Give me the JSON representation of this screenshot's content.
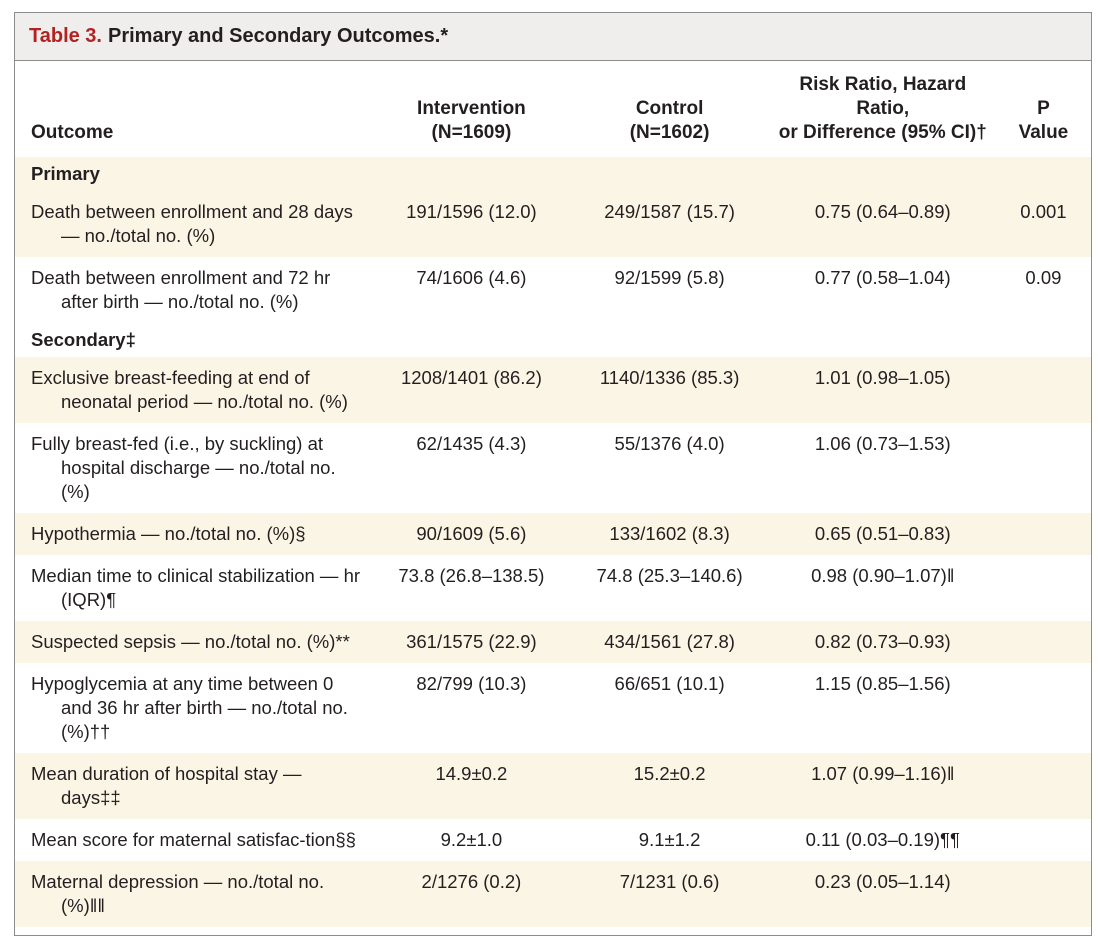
{
  "table": {
    "title_prefix": "Table 3.",
    "title_text": "Primary and Secondary Outcomes.*",
    "headers": {
      "outcome": "Outcome",
      "intervention_line1": "Intervention",
      "intervention_line2": "(N=1609)",
      "control_line1": "Control",
      "control_line2": "(N=1602)",
      "ratio_line1": "Risk Ratio, Hazard Ratio,",
      "ratio_line2": "or Difference (95% CI)†",
      "p_line1": "P",
      "p_line2": "Value"
    },
    "section_primary": "Primary",
    "section_secondary": "Secondary‡",
    "rows": [
      {
        "outcome": "Death between enrollment and 28 days — no./total no. (%)",
        "intervention": "191/1596 (12.0)",
        "control": "249/1587 (15.7)",
        "ratio": "0.75 (0.64–0.89)",
        "p": "0.001"
      },
      {
        "outcome": "Death between enrollment and 72 hr after birth — no./total no. (%)",
        "intervention": "74/1606 (4.6)",
        "control": "92/1599 (5.8)",
        "ratio": "0.77 (0.58–1.04)",
        "p": "0.09"
      },
      {
        "outcome": "Exclusive breast-feeding at end of neonatal period — no./total no. (%)",
        "intervention": "1208/1401 (86.2)",
        "control": "1140/1336 (85.3)",
        "ratio": "1.01 (0.98–1.05)",
        "p": ""
      },
      {
        "outcome": "Fully breast-fed (i.e., by suckling) at hospital discharge — no./total no. (%)",
        "intervention": "62/1435 (4.3)",
        "control": "55/1376 (4.0)",
        "ratio": "1.06 (0.73–1.53)",
        "p": ""
      },
      {
        "outcome": "Hypothermia — no./total no. (%)§",
        "intervention": "90/1609 (5.6)",
        "control": "133/1602 (8.3)",
        "ratio": "0.65 (0.51–0.83)",
        "p": ""
      },
      {
        "outcome": "Median time to clinical stabilization — hr (IQR)¶",
        "intervention": "73.8 (26.8–138.5)",
        "control": "74.8 (25.3–140.6)",
        "ratio": "0.98 (0.90–1.07)‖",
        "p": ""
      },
      {
        "outcome": "Suspected sepsis — no./total no. (%)**",
        "intervention": "361/1575 (22.9)",
        "control": "434/1561 (27.8)",
        "ratio": "0.82 (0.73–0.93)",
        "p": ""
      },
      {
        "outcome": "Hypoglycemia at any time between 0 and 36 hr after birth — no./total no. (%)††",
        "intervention": "82/799 (10.3)",
        "control": "66/651 (10.1)",
        "ratio": "1.15 (0.85–1.56)",
        "p": ""
      },
      {
        "outcome": "Mean duration of hospital stay — days‡‡",
        "intervention": "14.9±0.2",
        "control": "15.2±0.2",
        "ratio": "1.07 (0.99–1.16)‖",
        "p": ""
      },
      {
        "outcome": "Mean score for maternal satisfac-tion§§",
        "intervention": "9.2±1.0",
        "control": "9.1±1.2",
        "ratio": "0.11 (0.03–0.19)¶¶",
        "p": ""
      },
      {
        "outcome": "Maternal depression — no./total no. (%)‖‖",
        "intervention": "2/1276 (0.2)",
        "control": "7/1231 (0.6)",
        "ratio": "0.23 (0.05–1.14)",
        "p": ""
      }
    ]
  }
}
